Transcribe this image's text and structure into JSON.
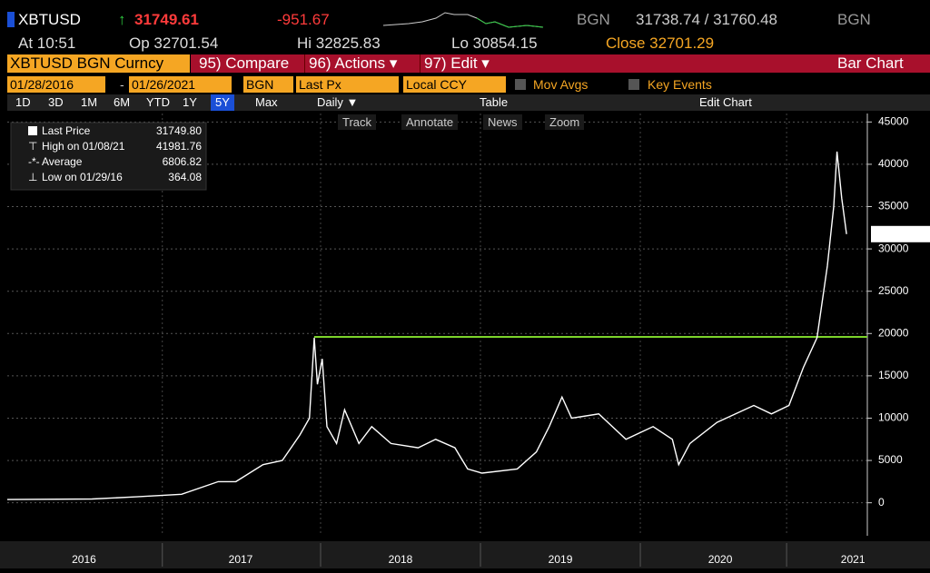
{
  "header": {
    "ticker": "XBTUSD",
    "arrow": "↑",
    "last": "31749.61",
    "change": "-951.67",
    "source": "BGN",
    "bid_ask": "31738.74 / 31760.48",
    "source2": "BGN",
    "at": "At 10:51",
    "open": "Op 32701.54",
    "high": "Hi 32825.83",
    "low": "Lo 30854.15",
    "close": "Close 32701.29"
  },
  "menu": {
    "security": "XBTUSD BGN Curncy",
    "compare": "95) Compare",
    "actions": "96) Actions ▾",
    "edit": "97) Edit ▾",
    "chart_kind": "Bar Chart"
  },
  "params": {
    "start": "01/28/2016",
    "dash": "-",
    "end": "01/26/2021",
    "currency": "BGN",
    "field": "Last Px",
    "ccy": "Local CCY",
    "mov_avgs": "Mov Avgs",
    "key_events": "Key Events"
  },
  "periods": [
    "1D",
    "3D",
    "1M",
    "6M",
    "YTD",
    "1Y",
    "5Y",
    "Max"
  ],
  "toolbar": {
    "freq": "Daily ▼",
    "table": "Table",
    "edit_chart": "Edit Chart"
  },
  "tools": [
    "Track",
    "Annotate",
    "News",
    "Zoom"
  ],
  "chart_data": {
    "type": "line",
    "series": [
      {
        "name": "Last Price",
        "color": "#ffffff",
        "x": [
          2016.02,
          2016.55,
          2016.83,
          2017.11,
          2017.34,
          2017.45,
          2017.62,
          2017.74,
          2017.85,
          2017.91,
          2017.94,
          2017.96,
          2017.99,
          2018.02,
          2018.08,
          2018.13,
          2018.22,
          2018.3,
          2018.42,
          2018.59,
          2018.7,
          2018.82,
          2018.9,
          2018.99,
          2019.21,
          2019.33,
          2019.41,
          2019.49,
          2019.55,
          2019.72,
          2019.89,
          2020.06,
          2020.18,
          2020.22,
          2020.29,
          2020.46,
          2020.69,
          2020.8,
          2020.91,
          2021.0,
          2021.085,
          2021.15,
          2021.19,
          2021.21,
          2021.24,
          2021.27
        ],
        "values": [
          380,
          450,
          700,
          1000,
          2500,
          2500,
          4500,
          5000,
          8000,
          10000,
          19500,
          14000,
          17000,
          9000,
          7000,
          11000,
          7000,
          9000,
          7000,
          6500,
          7500,
          6500,
          4000,
          3500,
          4000,
          6000,
          9000,
          12500,
          10000,
          10500,
          7500,
          9000,
          7500,
          4500,
          7000,
          9500,
          11500,
          10500,
          11500,
          16000,
          19500,
          28000,
          35000,
          41500,
          36000,
          31750
        ]
      }
    ],
    "hline": {
      "value": 19600,
      "color": "#7cd32b"
    },
    "last_price": {
      "value": 31749.8,
      "label": "31749.80"
    },
    "stats": [
      {
        "label": "High on 01/08/21",
        "value": 41981.76
      },
      {
        "label": "Average",
        "value": 6806.82
      },
      {
        "label": "Low on 01/29/16",
        "value": 364.08
      }
    ],
    "xlim": [
      2016.02,
      2021.4
    ],
    "xticks": [
      {
        "value": 2016.5,
        "label": "2016"
      },
      {
        "value": 2017.48,
        "label": "2017"
      },
      {
        "value": 2018.48,
        "label": "2018"
      },
      {
        "value": 2019.48,
        "label": "2019"
      },
      {
        "value": 2020.48,
        "label": "2020"
      },
      {
        "value": 2021.31,
        "label": "2021"
      }
    ],
    "ylim": [
      -3900,
      46000
    ],
    "yticks": [
      0,
      5000,
      10000,
      15000,
      20000,
      25000,
      30000,
      35000,
      40000,
      45000
    ],
    "grid": true
  }
}
